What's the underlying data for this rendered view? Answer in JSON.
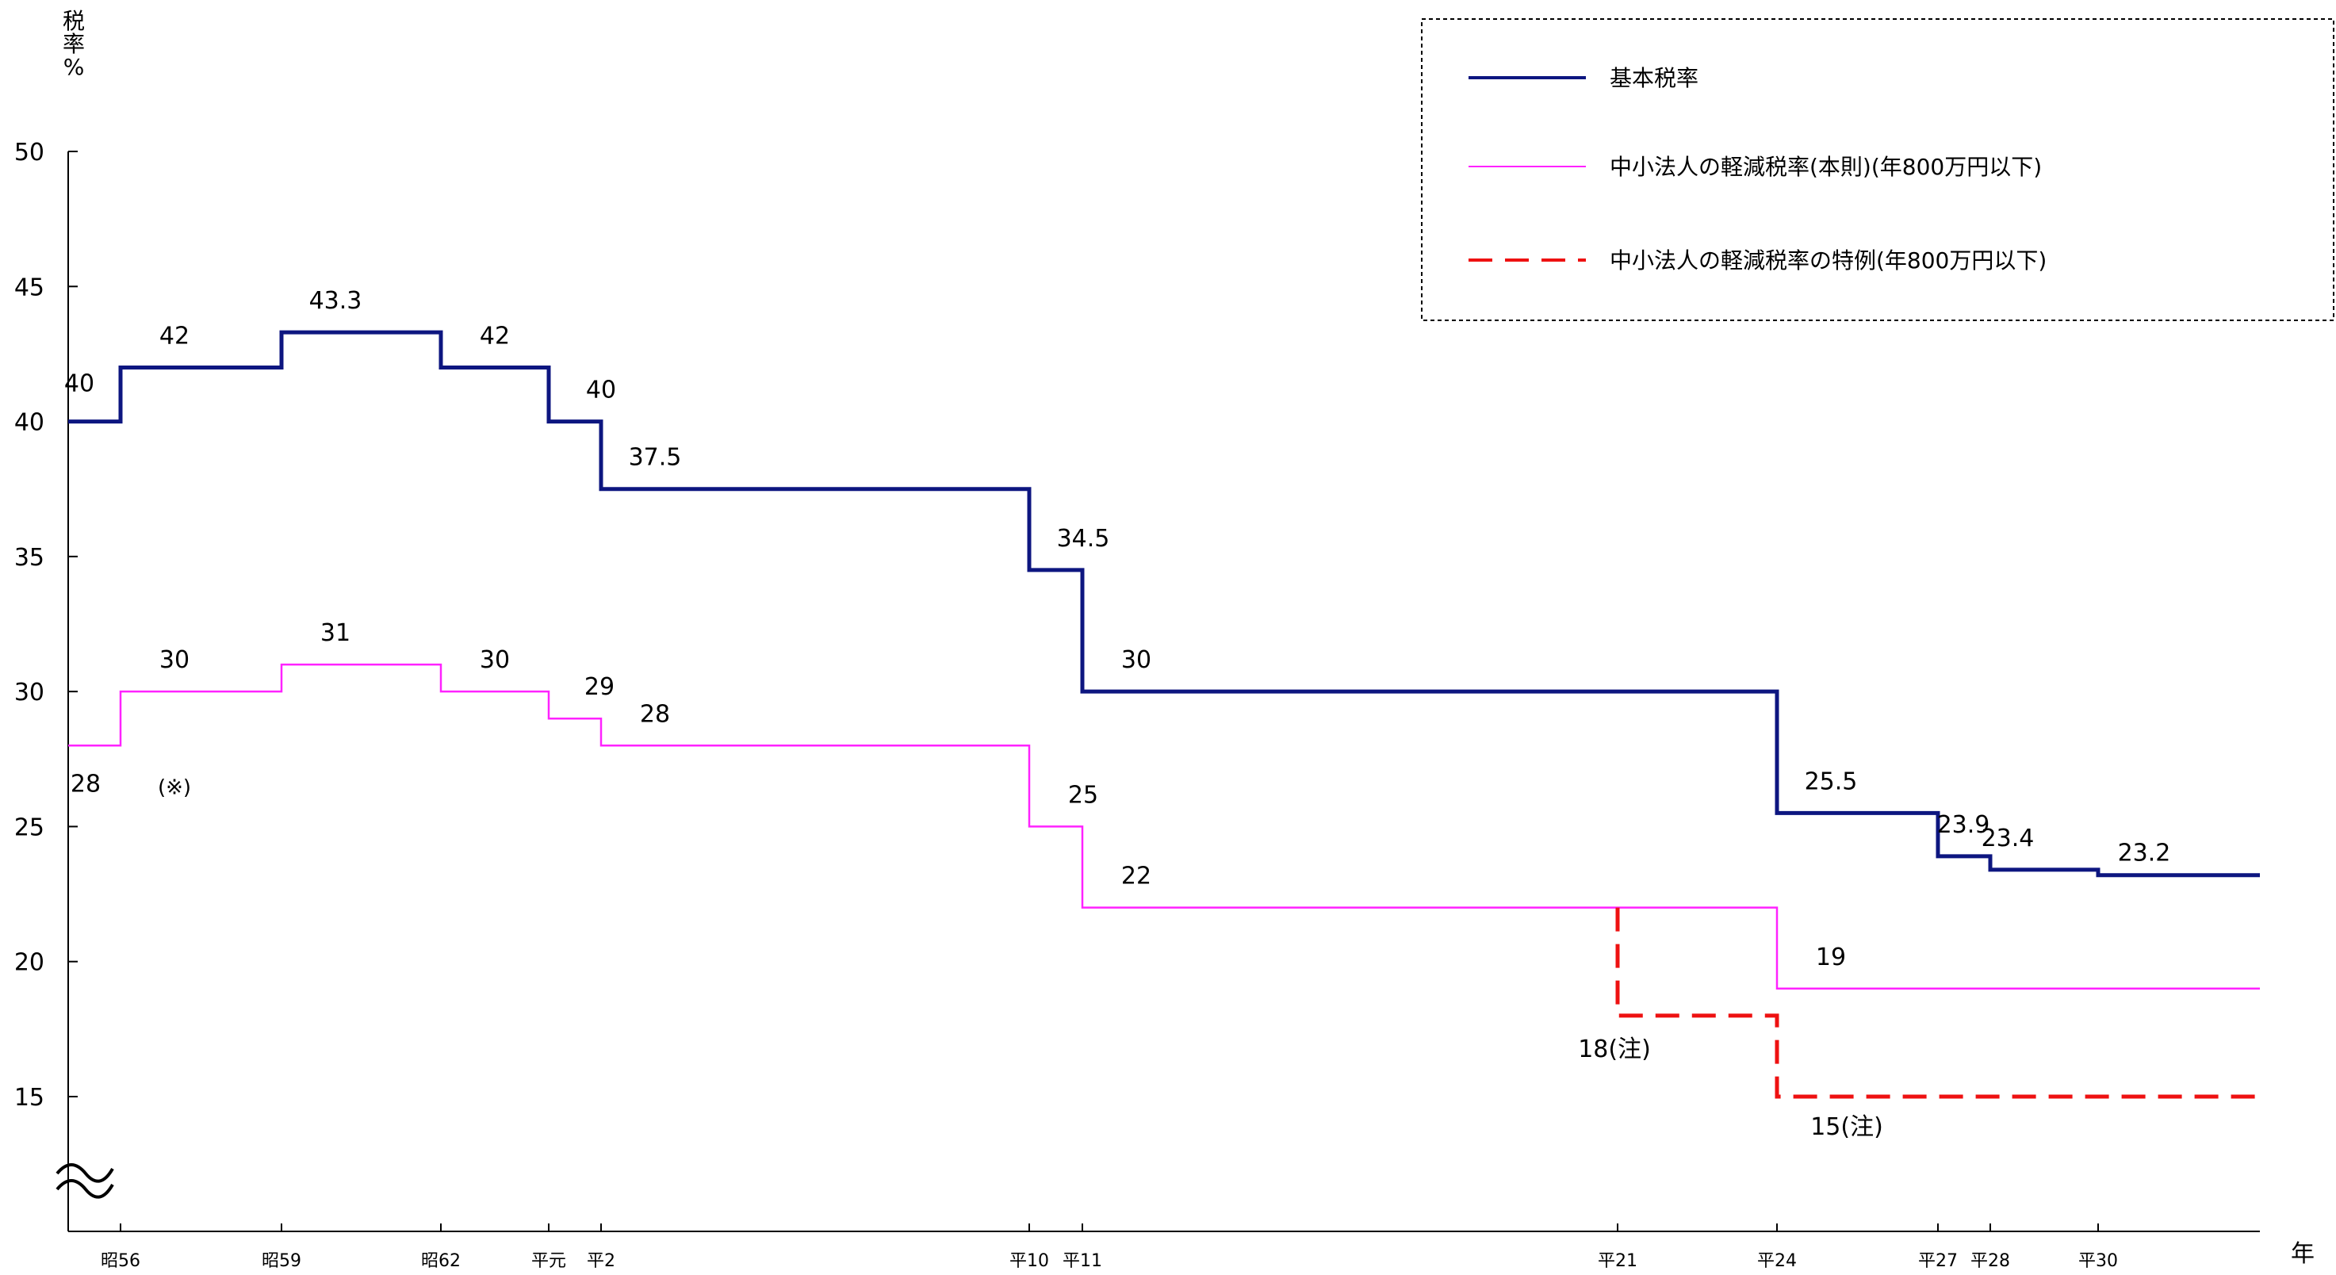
{
  "chart_data": {
    "type": "line",
    "step": true,
    "ylabel": "税率 %",
    "xlabel": "年",
    "ylim": [
      10,
      50
    ],
    "yticks": [
      15,
      20,
      25,
      30,
      35,
      40,
      45,
      50
    ],
    "axis_break": "≈",
    "x_ticks": [
      {
        "x": 56,
        "label": "昭56"
      },
      {
        "x": 59,
        "label": "昭59"
      },
      {
        "x": 62,
        "label": "昭62"
      },
      {
        "x": 64,
        "label": "平元"
      },
      {
        "x": 65,
        "label": "平2"
      },
      {
        "x": 73,
        "label": "平10"
      },
      {
        "x": 74,
        "label": "平11"
      },
      {
        "x": 84,
        "label": "平21"
      },
      {
        "x": 87,
        "label": "平24"
      },
      {
        "x": 90,
        "label": "平27"
      },
      {
        "x": 91,
        "label": "平28"
      },
      {
        "x": 93,
        "label": "平30"
      }
    ],
    "x_range": [
      55,
      96
    ],
    "legend_position": "top-right",
    "series": [
      {
        "name": "基本税率",
        "color": "#0d1680",
        "style": "solid",
        "points": [
          {
            "x": 55,
            "y": 40,
            "label": "40"
          },
          {
            "x": 56,
            "y": 42,
            "label": "42"
          },
          {
            "x": 59,
            "y": 43.3,
            "label": "43.3"
          },
          {
            "x": 62,
            "y": 42,
            "label": "42"
          },
          {
            "x": 64,
            "y": 40,
            "label": "40"
          },
          {
            "x": 65,
            "y": 37.5,
            "label": "37.5"
          },
          {
            "x": 73,
            "y": 34.5,
            "label": "34.5"
          },
          {
            "x": 74,
            "y": 30,
            "label": "30"
          },
          {
            "x": 87,
            "y": 25.5,
            "label": "25.5"
          },
          {
            "x": 90,
            "y": 23.9,
            "label": "23.9"
          },
          {
            "x": 91,
            "y": 23.4,
            "label": "23.4"
          },
          {
            "x": 93,
            "y": 23.2,
            "label": "23.2"
          }
        ],
        "end_x": 96
      },
      {
        "name": "中小法人の軽減税率(本則)(年800万円以下)",
        "color": "#ff22ff",
        "style": "solid",
        "points": [
          {
            "x": 55,
            "y": 28,
            "label": "28"
          },
          {
            "x": 56,
            "y": 30,
            "label": "30"
          },
          {
            "x": 59,
            "y": 31,
            "label": "31"
          },
          {
            "x": 62,
            "y": 30,
            "label": "30"
          },
          {
            "x": 64,
            "y": 29,
            "label": "29"
          },
          {
            "x": 65,
            "y": 28,
            "label": "28"
          },
          {
            "x": 73,
            "y": 25,
            "label": "25"
          },
          {
            "x": 74,
            "y": 22,
            "label": "22"
          },
          {
            "x": 87,
            "y": 19,
            "label": "19"
          }
        ],
        "end_x": 96
      },
      {
        "name": "中小法人の軽減税率の特例(年800万円以下)",
        "color": "#ee1111",
        "style": "dashed",
        "points": [
          {
            "x": 84,
            "y": 22,
            "label": ""
          },
          {
            "x": 84,
            "y": 18,
            "label": "18(注)"
          },
          {
            "x": 87,
            "y": 15,
            "label": "15(注)"
          }
        ],
        "end_x": 96
      }
    ],
    "annotations": [
      {
        "text": "(※)",
        "x": 57,
        "y": 26.2
      }
    ]
  }
}
